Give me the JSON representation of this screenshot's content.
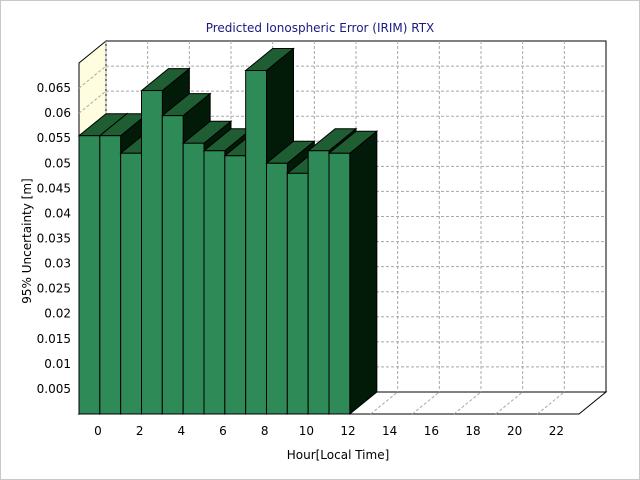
{
  "chart_data": {
    "type": "bar",
    "title": "Predicted Ionospheric Error (IRIM) RTX",
    "xlabel": "Hour[Local Time]",
    "ylabel": "95% Uncertainty [m]",
    "x_ticks": [
      "0",
      "2",
      "4",
      "6",
      "8",
      "10",
      "12",
      "14",
      "16",
      "18",
      "20",
      "22"
    ],
    "y_ticks": [
      "0.005",
      "0.01",
      "0.015",
      "0.02",
      "0.025",
      "0.03",
      "0.035",
      "0.04",
      "0.045",
      "0.05",
      "0.055",
      "0.06",
      "0.065"
    ],
    "ylim": [
      0,
      0.07
    ],
    "xlim": [
      0,
      24
    ],
    "grid": true,
    "x": [
      0,
      1,
      2,
      3,
      4,
      5,
      6,
      7,
      8,
      9,
      10,
      11,
      12
    ],
    "values": [
      0.0555,
      0.0555,
      0.052,
      0.0645,
      0.0595,
      0.054,
      0.0525,
      0.0515,
      0.0685,
      0.05,
      0.048,
      0.0525,
      0.052
    ],
    "colors": {
      "bar_front": "#2e8b57",
      "bar_top": "#1e5e32",
      "bar_side": "#021a08",
      "wall": "#fffde0",
      "grid": "#a8a8a8",
      "title": "#1a1a80"
    }
  }
}
